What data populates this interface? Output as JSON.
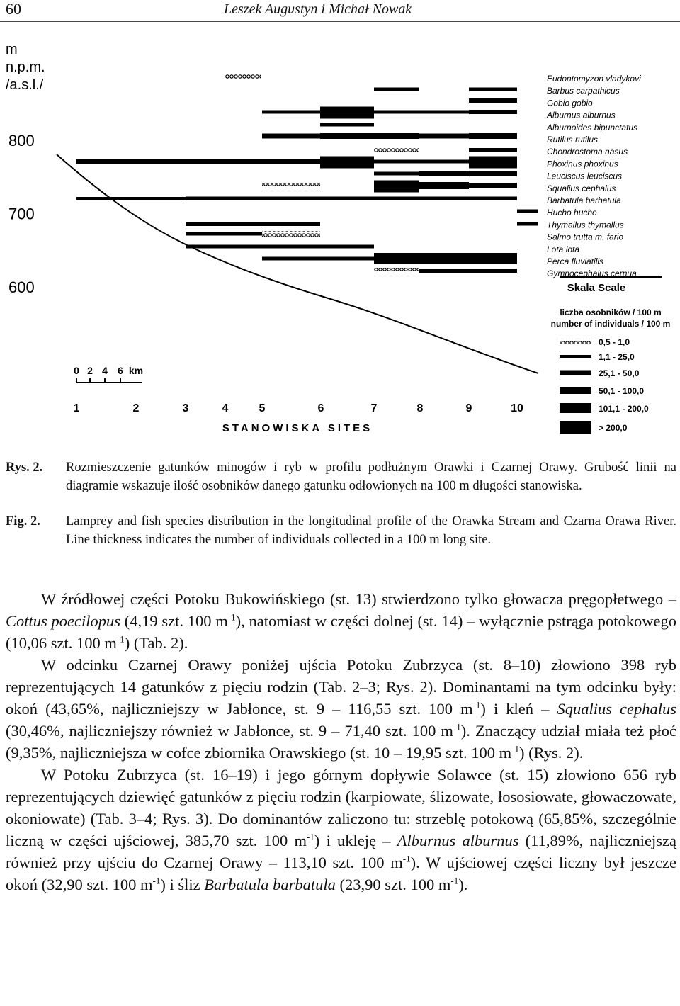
{
  "header": {
    "page_number": "60",
    "authors": "Leszek Augustyn i Michał Nowak"
  },
  "figure": {
    "y_axis_label": [
      "m",
      "n.p.m.",
      "/a.s.l./"
    ],
    "elevation_ticks": [
      800,
      700,
      600
    ],
    "sites": [
      1,
      2,
      3,
      4,
      5,
      6,
      7,
      8,
      9,
      10
    ],
    "sites_title": "STANOWISKA SITES",
    "distance_scale": [
      "0",
      "2",
      "4",
      "6",
      "km"
    ],
    "species": [
      "Eudontomyzon vladykovi",
      "Barbus carpathicus",
      "Gobio gobio",
      "Alburnus alburnus",
      "Alburnoides bipunctatus",
      "Rutilus rutilus",
      "Chondrostoma nasus",
      "Phoxinus phoxinus",
      "Leuciscus leuciscus",
      "Squalius cephalus",
      "Barbatula barbatula",
      "Hucho hucho",
      "Thymallus thymallus",
      "Salmo trutta m. fario",
      "Lota lota",
      "Perca fluviatilis",
      "Gymnocephalus cernua"
    ],
    "scale_title": "Skala Scale",
    "scale_subtitle": [
      "liczba osobników / 100 m",
      "number of individuals / 100 m"
    ],
    "scale_classes": [
      "0,5 -  1,0",
      "1,1 - 25,0",
      "25,1 - 50,0",
      "50,1 - 100,0",
      "101,1 - 200,0",
      "> 200,0"
    ]
  },
  "caption": [
    {
      "label": "Rys. 2.",
      "text": "Rozmieszczenie gatunków minogów i ryb w profilu podłużnym Orawki i Czarnej Orawy. Grubość linii na diagramie wskazuje ilość osobników danego gatunku odłowionych na 100 m długości stanowiska."
    },
    {
      "label": "Fig. 2.",
      "text": "Lamprey and fish species distribution in the longitudinal profile of the Orawka Stream and Czarna Orawa River. Line thickness indicates the number of individuals collected in a 100 m long site."
    }
  ],
  "paragraphs": [
    [
      {
        "text": "W źródłowej części Potoku Bukowińskiego (st. 13) stwierdzono tylko głowacza pręgopłetwego – "
      },
      {
        "text": "Cottus poecilopus",
        "format": "italic"
      },
      {
        "text": " (4,19 szt. 100 m"
      },
      {
        "text": "-1",
        "format": "sup"
      },
      {
        "text": "), natomiast w części dolnej (st. 14) – wyłącznie pstrąga potokowego (10,06 szt. 100 m"
      },
      {
        "text": "-1",
        "format": "sup"
      },
      {
        "text": ") (Tab. 2)."
      }
    ],
    [
      {
        "text": "W odcinku Czarnej Orawy poniżej ujścia Potoku Zubrzyca (st. 8–10) złowiono 398 ryb reprezentujących 14 gatunków z pięciu rodzin (Tab. 2–3; Rys. 2). Dominantami na tym odcinku były: okoń (43,65%, najliczniejszy w Jabłonce, st. 9 – 116,55 szt. 100 m"
      },
      {
        "text": "-1",
        "format": "sup"
      },
      {
        "text": ") i kleń – "
      },
      {
        "text": "Squalius cephalus",
        "format": "italic"
      },
      {
        "text": " (30,46%, najliczniejszy również w Jabłonce, st. 9 – 71,40 szt. 100 m"
      },
      {
        "text": "-1",
        "format": "sup"
      },
      {
        "text": "). Znaczący udział miała też płoć (9,35%, najliczniejsza w cofce zbiornika Orawskiego (st. 10 – 19,95 szt. 100 m"
      },
      {
        "text": "-1",
        "format": "sup"
      },
      {
        "text": ") (Rys. 2)."
      }
    ],
    [
      {
        "text": "W Potoku Zubrzyca (st. 16–19) i jego górnym dopływie Solawce (st. 15) złowiono 656 ryb reprezentujących dziewięć gatunków z pięciu rodzin (karpiowate, ślizowate, łososiowate, głowaczowate, okoniowate) (Tab. 3–4; Rys. 3). Do dominantów zaliczono tu: strzeblę potokową (65,85%, szczególnie liczną w części ujściowej, 385,70 szt. 100 m"
      },
      {
        "text": "-1",
        "format": "sup"
      },
      {
        "text": ") i ukleję – "
      },
      {
        "text": "Alburnus alburnus",
        "format": "italic"
      },
      {
        "text": " (11,89%, najliczniejszą również przy ujściu do Czarnej Orawy – 113,10 szt. 100 m"
      },
      {
        "text": "-1",
        "format": "sup"
      },
      {
        "text": "). W ujściowej części liczny był jeszcze okoń (32,90 szt. 100 m"
      },
      {
        "text": "-1",
        "format": "sup"
      },
      {
        "text": ") i śliz "
      },
      {
        "text": "Barbatula barbatula",
        "format": "italic"
      },
      {
        "text": " (23,90 szt. 100 m"
      },
      {
        "text": "-1",
        "format": "sup"
      },
      {
        "text": ")."
      }
    ]
  ]
}
